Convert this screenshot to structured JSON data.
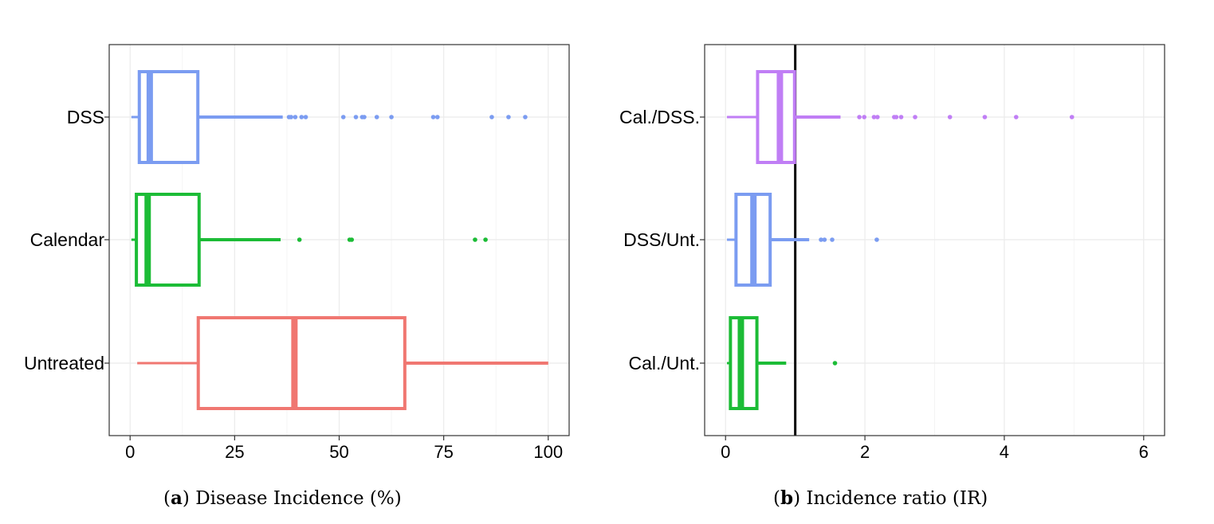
{
  "chart_data": [
    {
      "type": "boxplot",
      "panel": "a",
      "caption_letter": "a",
      "caption_text": "Disease Incidence (%)",
      "orientation": "horizontal",
      "xlim": [
        -5,
        105
      ],
      "xticks": [
        0,
        25,
        50,
        75,
        100
      ],
      "grid": true,
      "categories": [
        "DSS",
        "Calendar",
        "Untreated"
      ],
      "series": [
        {
          "name": "DSS",
          "color": "#7b9cf1",
          "whisker_low": 0.3,
          "q1": 2.2,
          "median": 4.7,
          "q3": 16.2,
          "whisker_high": 36.5,
          "outliers": [
            38,
            38.5,
            39.5,
            41,
            42,
            51,
            54,
            55.5,
            56,
            59,
            62.5,
            72.5,
            73.5,
            86.5,
            90.5,
            94.5
          ]
        },
        {
          "name": "Calendar",
          "color": "#1cbc36",
          "whisker_low": 0.3,
          "q1": 1.5,
          "median": 4.2,
          "q3": 16.5,
          "whisker_high": 36.0,
          "outliers": [
            40.5,
            52.5,
            53,
            82.5,
            85
          ]
        },
        {
          "name": "Untreated",
          "color": "#f07771",
          "whisker_low": 1.7,
          "q1": 16.3,
          "median": 39.3,
          "q3": 65.7,
          "whisker_high": 100,
          "outliers": []
        }
      ]
    },
    {
      "type": "boxplot",
      "panel": "b",
      "caption_letter": "b",
      "caption_text": "Incidence ratio (IR)",
      "orientation": "horizontal",
      "xlim": [
        -0.3,
        6.3
      ],
      "xticks": [
        0,
        2,
        4,
        6
      ],
      "grid": true,
      "reference_line": 1,
      "categories": [
        "Cal./DSS.",
        "DSS/Unt.",
        "Cal./Unt."
      ],
      "series": [
        {
          "name": "Cal./DSS.",
          "color": "#c07ef5",
          "whisker_low": 0.02,
          "q1": 0.46,
          "median": 0.78,
          "q3": 0.99,
          "whisker_high": 1.65,
          "outliers": [
            1.92,
            1.99,
            2.13,
            2.18,
            2.42,
            2.45,
            2.52,
            2.72,
            3.22,
            3.72,
            4.17,
            4.97
          ]
        },
        {
          "name": "DSS/Unt.",
          "color": "#7b9cf1",
          "whisker_low": 0.02,
          "q1": 0.15,
          "median": 0.4,
          "q3": 0.64,
          "whisker_high": 1.2,
          "outliers": [
            1.37,
            1.42,
            1.53,
            2.17
          ]
        },
        {
          "name": "Cal./Unt.",
          "color": "#1cbc36",
          "whisker_low": 0.02,
          "q1": 0.07,
          "median": 0.22,
          "q3": 0.45,
          "whisker_high": 0.87,
          "outliers": [
            1.57
          ]
        }
      ]
    }
  ]
}
